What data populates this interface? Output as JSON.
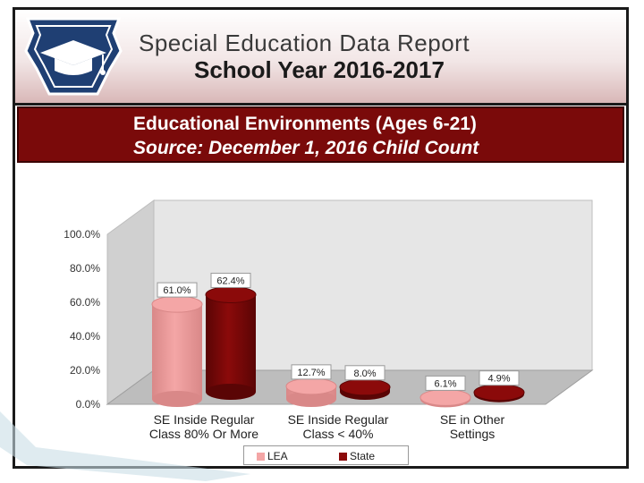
{
  "header": {
    "title": "Special Education Data Report",
    "year": "School Year 2016-2017",
    "logo_icon": "keystone-graduation-cap-icon"
  },
  "chart_data": {
    "type": "bar",
    "title": "Educational Environments (Ages 6-21)",
    "subtitle": "Source: December 1, 2016 Child Count",
    "categories": [
      "SE Inside Regular Class 80% Or More",
      "SE Inside Regular Class < 40%",
      "SE in Other Settings"
    ],
    "category_lines": [
      [
        "SE Inside Regular",
        "Class 80% Or More"
      ],
      [
        "SE Inside Regular",
        "Class < 40%"
      ],
      [
        "SE in Other",
        "Settings"
      ]
    ],
    "series": [
      {
        "name": "LEA",
        "values": [
          61.0,
          12.7,
          6.1
        ],
        "labels": [
          "61.0%",
          "12.7%",
          "6.1%"
        ],
        "color": "#f4a6a6"
      },
      {
        "name": "State",
        "values": [
          62.4,
          8.0,
          4.9
        ],
        "labels": [
          "62.4%",
          "8.0%",
          "4.9%"
        ],
        "color": "#8b0a0a"
      }
    ],
    "yticks": [
      "0.0%",
      "20.0%",
      "40.0%",
      "60.0%",
      "80.0%",
      "100.0%"
    ],
    "ylim": [
      0,
      100
    ],
    "grid": false,
    "legend": "bottom",
    "style": "3d-cylinder"
  }
}
